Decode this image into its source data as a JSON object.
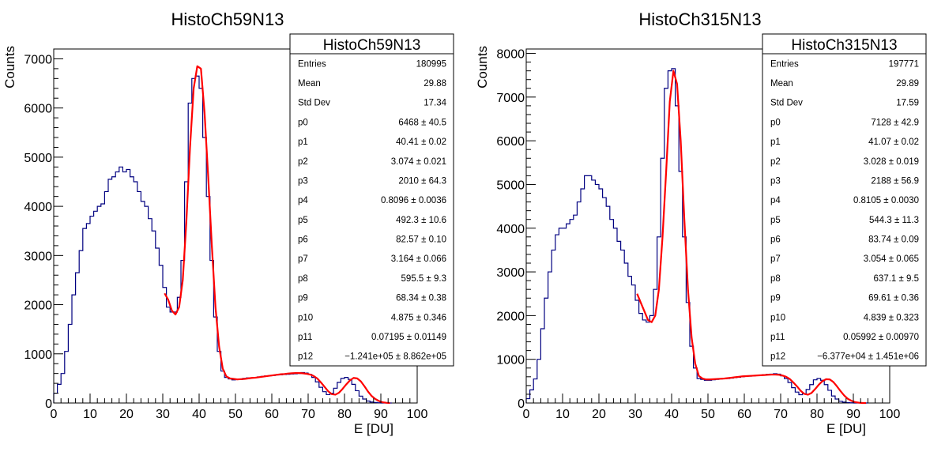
{
  "chart_data": [
    {
      "type": "bar",
      "title": "HistoCh59N13",
      "xlabel": "E [DU]",
      "ylabel": "Counts",
      "xlim": [
        0,
        100
      ],
      "ylim": [
        0,
        7200
      ],
      "xticks": [
        "0",
        "10",
        "20",
        "30",
        "40",
        "50",
        "60",
        "70",
        "80",
        "90",
        "100"
      ],
      "yticks": [
        "0",
        "1000",
        "2000",
        "3000",
        "4000",
        "5000",
        "6000",
        "7000"
      ],
      "bin_width": 1,
      "x": [
        0,
        1,
        2,
        3,
        4,
        5,
        6,
        7,
        8,
        9,
        10,
        11,
        12,
        13,
        14,
        15,
        16,
        17,
        18,
        19,
        20,
        21,
        22,
        23,
        24,
        25,
        26,
        27,
        28,
        29,
        30,
        31,
        32,
        33,
        34,
        35,
        36,
        37,
        38,
        39,
        40,
        41,
        42,
        43,
        44,
        45,
        46,
        47,
        48,
        49,
        50,
        51,
        52,
        53,
        54,
        55,
        56,
        57,
        58,
        59,
        60,
        61,
        62,
        63,
        64,
        65,
        66,
        67,
        68,
        69,
        70,
        71,
        72,
        73,
        74,
        75,
        76,
        77,
        78,
        79,
        80,
        81,
        82,
        83,
        84,
        85,
        86,
        87,
        88,
        89,
        90,
        91,
        92
      ],
      "values": [
        200,
        380,
        600,
        1050,
        1600,
        2200,
        2650,
        3100,
        3550,
        3650,
        3800,
        3900,
        4000,
        4050,
        4300,
        4550,
        4600,
        4700,
        4800,
        4700,
        4750,
        4600,
        4500,
        4300,
        4100,
        4000,
        3750,
        3500,
        3150,
        2800,
        2350,
        1950,
        1850,
        1850,
        2150,
        2900,
        4500,
        6100,
        6600,
        6650,
        6400,
        5400,
        4200,
        2900,
        1750,
        1050,
        650,
        520,
        490,
        470,
        480,
        480,
        500,
        510,
        510,
        520,
        530,
        540,
        550,
        555,
        560,
        570,
        575,
        580,
        585,
        590,
        595,
        600,
        620,
        610,
        580,
        520,
        430,
        320,
        230,
        170,
        200,
        300,
        420,
        500,
        520,
        480,
        380,
        250,
        140,
        80,
        40,
        20,
        10,
        5,
        0,
        0,
        0
      ],
      "fit_x": [
        30,
        31,
        32,
        33,
        34,
        35,
        36,
        37,
        38,
        39,
        40,
        41,
        42,
        43,
        44,
        45,
        46,
        47,
        48,
        49,
        50,
        51,
        52,
        53,
        54,
        55,
        56,
        57,
        58,
        59,
        60,
        61,
        62,
        63,
        64,
        65,
        66,
        67,
        68,
        69,
        70,
        71,
        72,
        73,
        74,
        75,
        76,
        77,
        78,
        79,
        80,
        81,
        82,
        83,
        84,
        85,
        86,
        87,
        88,
        89,
        90,
        91,
        92
      ],
      "fit_y": [
        2230,
        2100,
        1880,
        1800,
        1950,
        2500,
        3700,
        5200,
        6400,
        6850,
        6800,
        5900,
        4600,
        3200,
        1950,
        1150,
        700,
        540,
        500,
        490,
        480,
        485,
        490,
        500,
        510,
        515,
        525,
        535,
        545,
        555,
        565,
        575,
        585,
        590,
        600,
        605,
        610,
        610,
        605,
        595,
        580,
        550,
        500,
        420,
        330,
        240,
        180,
        170,
        210,
        290,
        380,
        460,
        510,
        500,
        440,
        340,
        230,
        140,
        80,
        40,
        15,
        5,
        0
      ],
      "stats": {
        "name": "HistoCh59N13",
        "rows": [
          {
            "label": "Entries",
            "value": "180995"
          },
          {
            "label": "Mean",
            "value": "29.88"
          },
          {
            "label": "Std Dev",
            "value": "17.34"
          },
          {
            "label": "p0",
            "value": "6468 ± 40.5"
          },
          {
            "label": "p1",
            "value": "40.41 ± 0.02"
          },
          {
            "label": "p2",
            "value": "3.074 ± 0.021"
          },
          {
            "label": "p3",
            "value": "2010 ± 64.3"
          },
          {
            "label": "p4",
            "value": "0.8096 ± 0.0036"
          },
          {
            "label": "p5",
            "value": "492.3 ± 10.6"
          },
          {
            "label": "p6",
            "value": "82.57 ± 0.10"
          },
          {
            "label": "p7",
            "value": "3.164 ± 0.066"
          },
          {
            "label": "p8",
            "value": "595.5 ± 9.3"
          },
          {
            "label": "p9",
            "value": "68.34 ± 0.38"
          },
          {
            "label": "p10",
            "value": "4.875 ± 0.346"
          },
          {
            "label": "p11",
            "value": "0.07195 ± 0.01149"
          },
          {
            "label": "p12",
            "value": "−1.241e+05 ± 8.862e+05"
          }
        ]
      },
      "colors": {
        "histogram": "#000080",
        "fit": "#ff0000",
        "axis": "#000000"
      }
    },
    {
      "type": "bar",
      "title": "HistoCh315N13",
      "xlabel": "E [DU]",
      "ylabel": "Counts",
      "xlim": [
        0,
        100
      ],
      "ylim": [
        0,
        8100
      ],
      "xticks": [
        "0",
        "10",
        "20",
        "30",
        "40",
        "50",
        "60",
        "70",
        "80",
        "90",
        "100"
      ],
      "yticks": [
        "0",
        "1000",
        "2000",
        "3000",
        "4000",
        "5000",
        "6000",
        "7000",
        "8000"
      ],
      "bin_width": 1,
      "x": [
        0,
        1,
        2,
        3,
        4,
        5,
        6,
        7,
        8,
        9,
        10,
        11,
        12,
        13,
        14,
        15,
        16,
        17,
        18,
        19,
        20,
        21,
        22,
        23,
        24,
        25,
        26,
        27,
        28,
        29,
        30,
        31,
        32,
        33,
        34,
        35,
        36,
        37,
        38,
        39,
        40,
        41,
        42,
        43,
        44,
        45,
        46,
        47,
        48,
        49,
        50,
        51,
        52,
        53,
        54,
        55,
        56,
        57,
        58,
        59,
        60,
        61,
        62,
        63,
        64,
        65,
        66,
        67,
        68,
        69,
        70,
        71,
        72,
        73,
        74,
        75,
        76,
        77,
        78,
        79,
        80,
        81,
        82,
        83,
        84,
        85,
        86,
        87,
        88,
        89,
        90,
        91,
        92,
        93
      ],
      "values": [
        100,
        300,
        550,
        1000,
        1700,
        2400,
        3000,
        3500,
        3850,
        4000,
        4000,
        4100,
        4200,
        4300,
        4600,
        4900,
        5200,
        5200,
        5100,
        5000,
        4900,
        4700,
        4500,
        4200,
        4000,
        3700,
        3500,
        3200,
        2900,
        2700,
        2350,
        2050,
        1900,
        1850,
        2000,
        2600,
        3800,
        5600,
        7200,
        7600,
        7650,
        6800,
        5300,
        3800,
        2300,
        1300,
        800,
        560,
        540,
        520,
        520,
        530,
        540,
        550,
        555,
        560,
        570,
        580,
        590,
        600,
        610,
        615,
        620,
        630,
        640,
        650,
        655,
        660,
        670,
        660,
        620,
        560,
        470,
        350,
        250,
        190,
        210,
        310,
        420,
        530,
        560,
        520,
        420,
        290,
        160,
        90,
        40,
        20,
        10,
        5,
        0,
        0,
        0,
        0
      ],
      "fit_x": [
        30,
        31,
        32,
        33,
        34,
        35,
        36,
        37,
        38,
        39,
        40,
        41,
        42,
        43,
        44,
        45,
        46,
        47,
        48,
        49,
        50,
        51,
        52,
        53,
        54,
        55,
        56,
        57,
        58,
        59,
        60,
        61,
        62,
        63,
        64,
        65,
        66,
        67,
        68,
        69,
        70,
        71,
        72,
        73,
        74,
        75,
        76,
        77,
        78,
        79,
        80,
        81,
        82,
        83,
        84,
        85,
        86,
        87,
        88,
        89,
        90,
        91,
        92,
        93
      ],
      "fit_y": [
        2500,
        2300,
        2100,
        1900,
        1850,
        2000,
        2600,
        3800,
        5300,
        6900,
        7600,
        7300,
        6000,
        4200,
        2600,
        1500,
        900,
        620,
        560,
        540,
        540,
        545,
        550,
        555,
        560,
        570,
        580,
        590,
        600,
        610,
        615,
        620,
        625,
        630,
        635,
        640,
        645,
        650,
        650,
        645,
        630,
        600,
        550,
        470,
        380,
        280,
        210,
        190,
        230,
        320,
        420,
        500,
        545,
        540,
        480,
        380,
        270,
        170,
        95,
        50,
        20,
        8,
        0,
        0
      ],
      "stats": {
        "name": "HistoCh315N13",
        "rows": [
          {
            "label": "Entries",
            "value": "197771"
          },
          {
            "label": "Mean",
            "value": "29.89"
          },
          {
            "label": "Std Dev",
            "value": "17.59"
          },
          {
            "label": "p0",
            "value": "7128 ± 42.9"
          },
          {
            "label": "p1",
            "value": "41.07 ± 0.02"
          },
          {
            "label": "p2",
            "value": "3.028 ± 0.019"
          },
          {
            "label": "p3",
            "value": "2188 ± 56.9"
          },
          {
            "label": "p4",
            "value": "0.8105 ± 0.0030"
          },
          {
            "label": "p5",
            "value": "544.3 ± 11.3"
          },
          {
            "label": "p6",
            "value": "83.74 ± 0.09"
          },
          {
            "label": "p7",
            "value": "3.054 ± 0.065"
          },
          {
            "label": "p8",
            "value": "637.1 ± 9.5"
          },
          {
            "label": "p9",
            "value": "69.61 ± 0.36"
          },
          {
            "label": "p10",
            "value": "4.839 ± 0.323"
          },
          {
            "label": "p11",
            "value": "0.05992 ± 0.00970"
          },
          {
            "label": "p12",
            "value": "−6.377e+04 ± 1.451e+06"
          }
        ]
      },
      "colors": {
        "histogram": "#000080",
        "fit": "#ff0000",
        "axis": "#000000"
      }
    }
  ]
}
